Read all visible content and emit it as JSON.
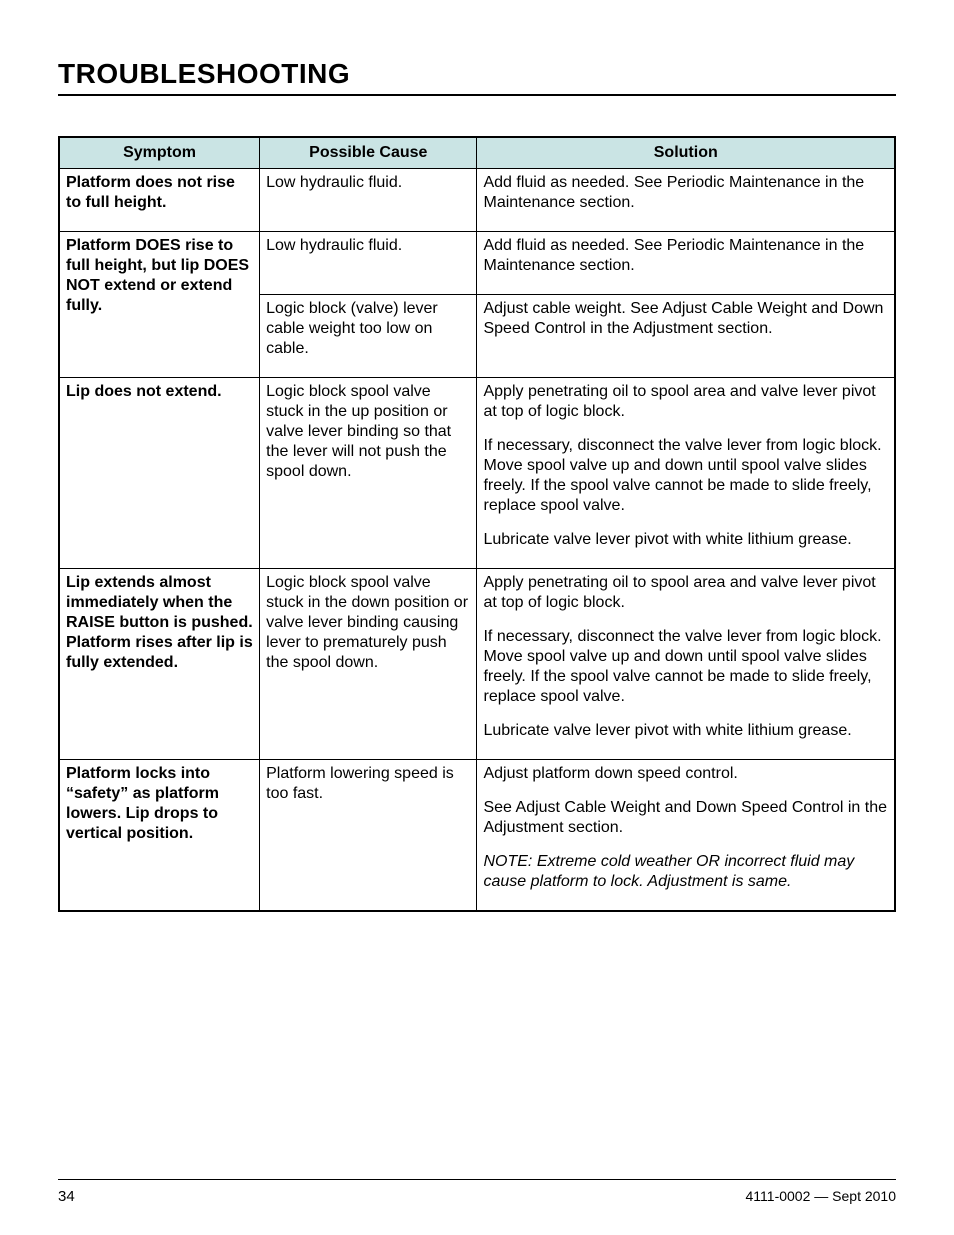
{
  "title": "TROUBLESHOOTING",
  "headers": {
    "c1": "Symptom",
    "c2": "Possible Cause",
    "c3": "Solution"
  },
  "rows": [
    {
      "symptom": "Platform does not rise to full height.",
      "cause": "Low hydraulic fluid.",
      "solution": [
        "Add fluid as needed. See Periodic Maintenance in the Maintenance section."
      ]
    },
    {
      "symptom": "Platform DOES rise to full height, but lip DOES NOT extend or extend fully.",
      "symptom_rowspan": 2,
      "cause": "Low hydraulic fluid.",
      "solution": [
        "Add fluid as needed. See Periodic Maintenance in the Maintenance section."
      ]
    },
    {
      "cause": "Logic block (valve) lever cable weight too low on cable.",
      "solution": [
        "Adjust cable weight. See Adjust Cable Weight and Down Speed Control in the Adjustment section."
      ]
    },
    {
      "symptom": "Lip does not extend.",
      "cause": "Logic block spool valve stuck in the up position or valve lever binding so that the lever will not push the spool down.",
      "solution": [
        "Apply penetrating oil to spool area and valve lever pivot at top of logic block.",
        "If necessary, disconnect the valve lever from logic block. Move spool valve up and down until spool valve slides freely. If the spool valve cannot be made to slide freely, replace spool valve.",
        "Lubricate valve lever pivot with white lithium grease."
      ]
    },
    {
      "symptom": "Lip extends almost immediately when the RAISE button is pushed. Platform rises after lip is fully extended.",
      "cause": "Logic block spool valve stuck in the down position or valve lever binding causing lever to prematurely push the spool down.",
      "solution": [
        "Apply penetrating oil to spool area and valve lever pivot at top of logic block.",
        "If necessary, disconnect the valve lever from logic block. Move spool valve up and down until spool valve slides freely. If the spool valve cannot be made to slide freely, replace spool valve.",
        "Lubricate valve lever pivot with white lithium grease."
      ]
    },
    {
      "symptom": "Platform locks into “safety” as platform lowers. Lip drops to vertical position.",
      "cause": "Platform lowering speed is too fast.",
      "solution": [
        "Adjust platform down speed control.",
        "See Adjust Cable Weight and Down Speed Control in the Adjustment section.",
        {
          "text": "NOTE:  Extreme cold weather OR incorrect fluid may cause platform to lock.  Adjustment is same.",
          "note": true
        }
      ]
    }
  ],
  "footer": {
    "page": "34",
    "doc": "4111-0002 — Sept 2010"
  },
  "colors": {
    "header_bg": "#cae4e4",
    "border": "#000000",
    "text": "#000000",
    "bg": "#ffffff"
  },
  "fonts": {
    "title_pt": 28,
    "header_pt": 16,
    "body_pt": 16,
    "footer_pt": 15
  }
}
